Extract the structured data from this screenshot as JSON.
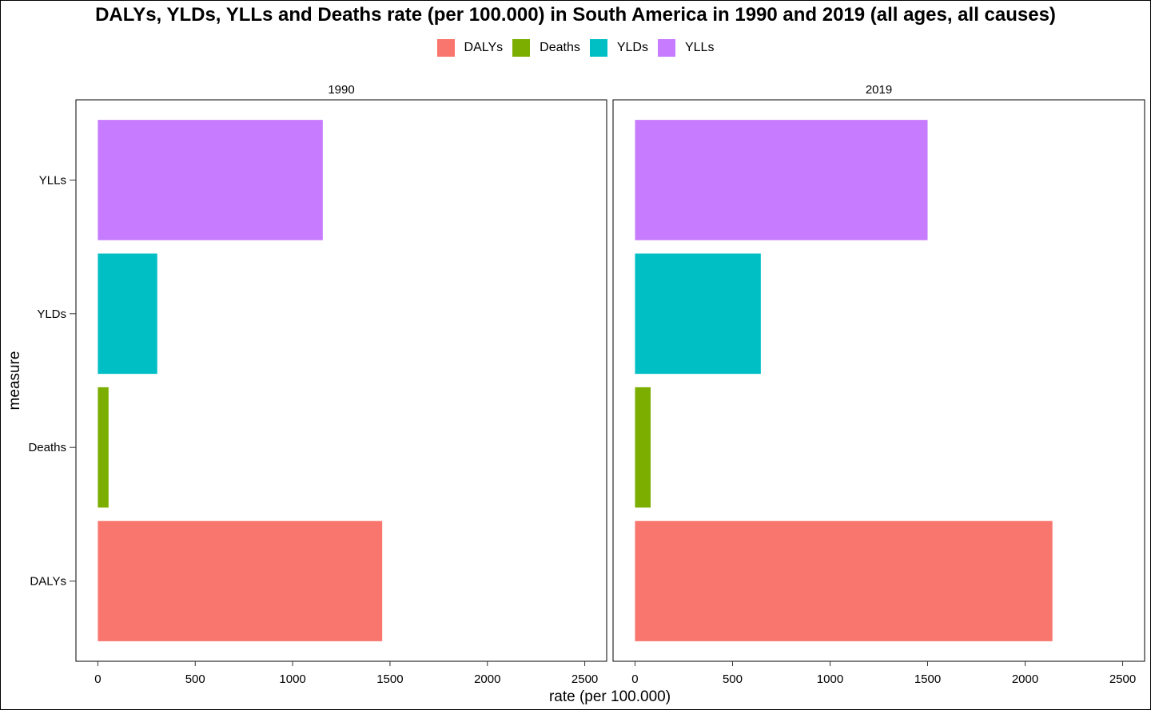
{
  "chart_data": {
    "type": "bar",
    "orientation": "horizontal",
    "title": "DALYs, YLDs, YLLs and Deaths rate (per 100.000) in South America in 1990 and 2019 (all ages, all causes)",
    "xlabel": "rate (per 100.000)",
    "ylabel": "measure",
    "xlim": [
      0,
      2500
    ],
    "xticks": [
      0,
      500,
      1000,
      1500,
      2000,
      2500
    ],
    "categories": [
      "DALYs",
      "Deaths",
      "YLDs",
      "YLLs"
    ],
    "colors": {
      "DALYs": "#F8766D",
      "Deaths": "#7CAE00",
      "YLDs": "#00BFC4",
      "YLLs": "#C77CFF"
    },
    "legend": {
      "position": "top",
      "entries": [
        "DALYs",
        "Deaths",
        "YLDs",
        "YLLs"
      ]
    },
    "grid": false,
    "panels": [
      {
        "label": "1990",
        "values": {
          "DALYs": 1460,
          "Deaths": 55,
          "YLDs": 305,
          "YLLs": 1155
        }
      },
      {
        "label": "2019",
        "values": {
          "DALYs": 2140,
          "Deaths": 80,
          "YLDs": 645,
          "YLLs": 1500
        }
      }
    ]
  }
}
